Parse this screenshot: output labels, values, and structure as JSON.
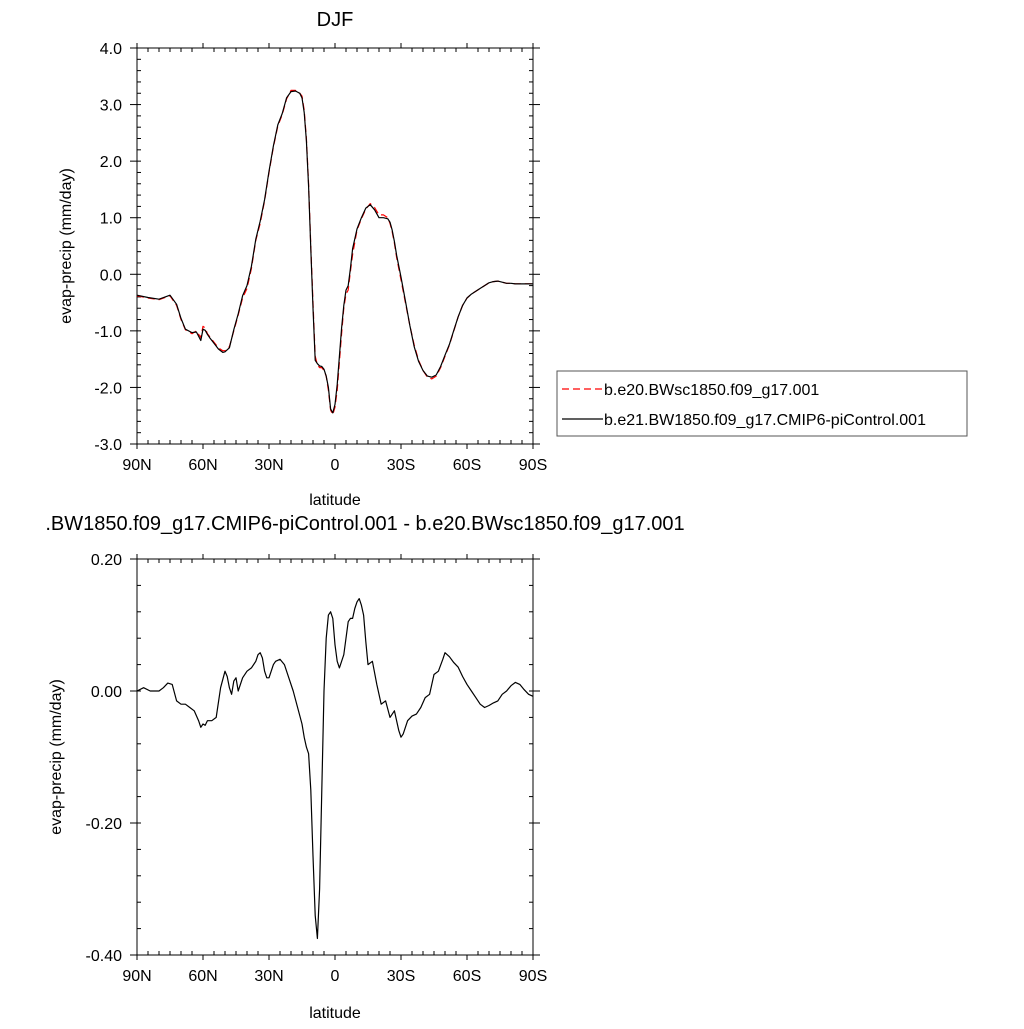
{
  "chart_data": [
    {
      "type": "line",
      "title": "DJF",
      "xlabel": "latitude",
      "ylabel": "evap-precip (mm/day)",
      "xlim": [
        90,
        -90
      ],
      "ylim": [
        -3.0,
        4.0
      ],
      "x_ticks": [
        90,
        60,
        30,
        0,
        -30,
        -60,
        -90
      ],
      "x_tick_labels": [
        "90N",
        "60N",
        "30N",
        "0",
        "30S",
        "60S",
        "90S"
      ],
      "y_ticks": [
        -3,
        -2,
        -1,
        0,
        1,
        2,
        3,
        4
      ],
      "y_tick_labels": [
        "-3.0",
        "-2.0",
        "-1.0",
        "0.0",
        "1.0",
        "2.0",
        "3.0",
        "4.0"
      ],
      "grid": false,
      "legend_position": "right",
      "series": [
        {
          "name": "b.e20.BWsc1850.f09_g17.001",
          "color": "#ff0000",
          "dash": "dashed",
          "x": [
            90,
            85,
            80,
            75,
            72,
            70,
            68,
            65,
            63,
            61,
            60,
            59,
            58,
            57,
            55,
            53,
            51,
            50,
            48,
            46,
            44,
            42,
            40,
            38,
            36,
            34,
            32,
            30,
            28,
            26,
            24,
            22,
            20,
            18,
            17,
            16,
            15,
            14,
            13,
            12,
            11,
            10,
            9,
            8,
            7,
            6,
            5,
            4,
            3,
            2,
            1,
            0,
            -1,
            -2,
            -3,
            -4,
            -5,
            -6,
            -7,
            -8,
            -10,
            -12,
            -14,
            -16,
            -18,
            -20,
            -22,
            -24,
            -25,
            -26,
            -27,
            -28,
            -30,
            -32,
            -34,
            -36,
            -38,
            -40,
            -42,
            -44,
            -46,
            -48,
            -50,
            -52,
            -54,
            -56,
            -58,
            -60,
            -62,
            -64,
            -66,
            -68,
            -70,
            -72,
            -74,
            -76,
            -78,
            -80,
            -82,
            -84,
            -86,
            -88,
            -90
          ],
          "y": [
            -0.38,
            -0.42,
            -0.45,
            -0.38,
            -0.55,
            -0.8,
            -0.98,
            -1.05,
            -1.0,
            -1.12,
            -0.92,
            -0.95,
            -1.05,
            -1.1,
            -1.2,
            -1.3,
            -1.35,
            -1.35,
            -1.28,
            -1.0,
            -0.72,
            -0.42,
            -0.25,
            0.1,
            0.6,
            0.9,
            1.3,
            1.8,
            2.25,
            2.62,
            2.82,
            3.1,
            3.25,
            3.25,
            3.22,
            3.2,
            3.15,
            2.9,
            2.4,
            1.6,
            0.5,
            -0.5,
            -1.45,
            -1.6,
            -1.65,
            -1.65,
            -1.7,
            -1.8,
            -2.05,
            -2.4,
            -2.48,
            -2.35,
            -2.05,
            -1.55,
            -1.05,
            -0.6,
            -0.35,
            -0.28,
            0.05,
            0.35,
            0.78,
            0.98,
            1.15,
            1.25,
            1.18,
            1.05,
            1.05,
            1.0,
            0.9,
            0.75,
            0.55,
            0.3,
            -0.1,
            -0.5,
            -0.9,
            -1.25,
            -1.52,
            -1.7,
            -1.82,
            -1.85,
            -1.8,
            -1.65,
            -1.45,
            -1.25,
            -1.0,
            -0.75,
            -0.55,
            -0.42,
            -0.35,
            -0.3,
            -0.25,
            -0.2,
            -0.15,
            -0.13,
            -0.12,
            -0.14,
            -0.16,
            -0.16,
            -0.17,
            -0.17,
            -0.17,
            -0.17,
            -0.17
          ]
        },
        {
          "name": "b.e21.BW1850.f09_g17.CMIP6-piControl.001",
          "color": "#000000",
          "dash": "solid",
          "x": [
            90,
            85,
            80,
            75,
            72,
            70,
            68,
            65,
            63,
            61,
            60,
            59,
            58,
            57,
            55,
            53,
            51,
            50,
            48,
            46,
            44,
            42,
            40,
            38,
            36,
            34,
            32,
            30,
            28,
            26,
            24,
            22,
            20,
            18,
            17,
            16,
            15,
            14,
            13,
            12,
            11,
            10,
            9,
            8,
            7,
            6,
            5,
            4,
            3,
            2,
            1,
            0,
            -1,
            -2,
            -3,
            -4,
            -5,
            -6,
            -7,
            -8,
            -10,
            -12,
            -14,
            -16,
            -18,
            -20,
            -22,
            -24,
            -25,
            -26,
            -27,
            -28,
            -30,
            -32,
            -34,
            -36,
            -38,
            -40,
            -42,
            -44,
            -46,
            -48,
            -50,
            -52,
            -54,
            -56,
            -58,
            -60,
            -62,
            -64,
            -66,
            -68,
            -70,
            -72,
            -74,
            -76,
            -78,
            -80,
            -82,
            -84,
            -86,
            -88,
            -90
          ],
          "y": [
            -0.37,
            -0.41,
            -0.44,
            -0.37,
            -0.53,
            -0.78,
            -0.97,
            -1.03,
            -1.02,
            -1.17,
            -0.97,
            -0.99,
            -1.06,
            -1.12,
            -1.22,
            -1.32,
            -1.38,
            -1.37,
            -1.3,
            -0.98,
            -0.7,
            -0.38,
            -0.2,
            0.14,
            0.62,
            0.94,
            1.32,
            1.82,
            2.27,
            2.64,
            2.84,
            3.12,
            3.23,
            3.24,
            3.22,
            3.2,
            3.12,
            2.86,
            2.36,
            1.55,
            0.45,
            -0.6,
            -1.52,
            -1.58,
            -1.62,
            -1.63,
            -1.68,
            -1.8,
            -2.0,
            -2.38,
            -2.45,
            -2.3,
            -1.95,
            -1.45,
            -0.95,
            -0.55,
            -0.28,
            -0.2,
            0.1,
            0.45,
            0.8,
            1.0,
            1.17,
            1.23,
            1.14,
            1.0,
            1.0,
            0.98,
            0.92,
            0.78,
            0.58,
            0.34,
            -0.05,
            -0.47,
            -0.9,
            -1.28,
            -1.54,
            -1.7,
            -1.8,
            -1.82,
            -1.78,
            -1.63,
            -1.43,
            -1.24,
            -0.99,
            -0.75,
            -0.55,
            -0.42,
            -0.35,
            -0.3,
            -0.25,
            -0.2,
            -0.15,
            -0.13,
            -0.12,
            -0.14,
            -0.16,
            -0.16,
            -0.17,
            -0.17,
            -0.17,
            -0.17,
            -0.17
          ]
        }
      ]
    },
    {
      "type": "line",
      "title": ".BW1850.f09_g17.CMIP6-piControl.001 - b.e20.BWsc1850.f09_g17.001",
      "xlabel": "latitude",
      "ylabel": "evap-precip (mm/day)",
      "xlim": [
        90,
        -90
      ],
      "ylim": [
        -0.4,
        0.2
      ],
      "x_ticks": [
        90,
        60,
        30,
        0,
        -30,
        -60,
        -90
      ],
      "x_tick_labels": [
        "90N",
        "60N",
        "30N",
        "0",
        "30S",
        "60S",
        "90S"
      ],
      "y_ticks": [
        -0.4,
        -0.2,
        0.0,
        0.2
      ],
      "y_tick_labels": [
        "-0.40",
        "-0.20",
        "0.00",
        "0.20"
      ],
      "grid": false,
      "series": [
        {
          "color": "#000000",
          "dash": "solid",
          "x": [
            90,
            87,
            84,
            80,
            78,
            76,
            74,
            72,
            70,
            68,
            66,
            64,
            62,
            61,
            60,
            59,
            58,
            56,
            54,
            52,
            50,
            49,
            48,
            47,
            46,
            45,
            44,
            42,
            40,
            38,
            36,
            35,
            34,
            33,
            32,
            31,
            30,
            28,
            27,
            25,
            23,
            21,
            19,
            17,
            15,
            14,
            13,
            12,
            11,
            10,
            9,
            8,
            7,
            6,
            5,
            4,
            3,
            2,
            1,
            0,
            -1,
            -2,
            -3,
            -4,
            -5,
            -6,
            -7,
            -8,
            -9,
            -10,
            -11,
            -12,
            -13,
            -14,
            -15,
            -17,
            -19,
            -21,
            -23,
            -25,
            -27,
            -29,
            -30,
            -31,
            -33,
            -35,
            -37,
            -39,
            -41,
            -43,
            -45,
            -47,
            -49,
            -50,
            -52,
            -54,
            -56,
            -58,
            -60,
            -62,
            -64,
            -66,
            -68,
            -70,
            -72,
            -74,
            -76,
            -78,
            -80,
            -82,
            -84,
            -86,
            -88,
            -90
          ],
          "y": [
            0.0,
            0.005,
            0.0,
            0.0,
            0.005,
            0.012,
            0.01,
            -0.015,
            -0.02,
            -0.02,
            -0.025,
            -0.03,
            -0.045,
            -0.055,
            -0.05,
            -0.052,
            -0.045,
            -0.045,
            -0.04,
            0.005,
            0.03,
            0.022,
            0.005,
            -0.005,
            0.015,
            0.02,
            0.0,
            0.02,
            0.03,
            0.035,
            0.045,
            0.055,
            0.058,
            0.05,
            0.03,
            0.02,
            0.02,
            0.04,
            0.045,
            0.048,
            0.04,
            0.02,
            0.0,
            -0.025,
            -0.05,
            -0.07,
            -0.085,
            -0.095,
            -0.15,
            -0.25,
            -0.34,
            -0.375,
            -0.3,
            -0.15,
            0.0,
            0.08,
            0.115,
            0.12,
            0.11,
            0.07,
            0.045,
            0.035,
            0.045,
            0.055,
            0.08,
            0.105,
            0.11,
            0.11,
            0.125,
            0.135,
            0.14,
            0.13,
            0.115,
            0.075,
            0.04,
            0.045,
            0.01,
            -0.02,
            -0.015,
            -0.04,
            -0.03,
            -0.06,
            -0.07,
            -0.065,
            -0.045,
            -0.038,
            -0.035,
            -0.025,
            -0.01,
            -0.005,
            0.025,
            0.03,
            0.048,
            0.058,
            0.052,
            0.043,
            0.036,
            0.022,
            0.01,
            0.0,
            -0.01,
            -0.02,
            -0.025,
            -0.022,
            -0.018,
            -0.015,
            -0.005,
            0.0,
            0.008,
            0.013,
            0.01,
            0.002,
            -0.005,
            -0.008
          ]
        }
      ]
    }
  ]
}
